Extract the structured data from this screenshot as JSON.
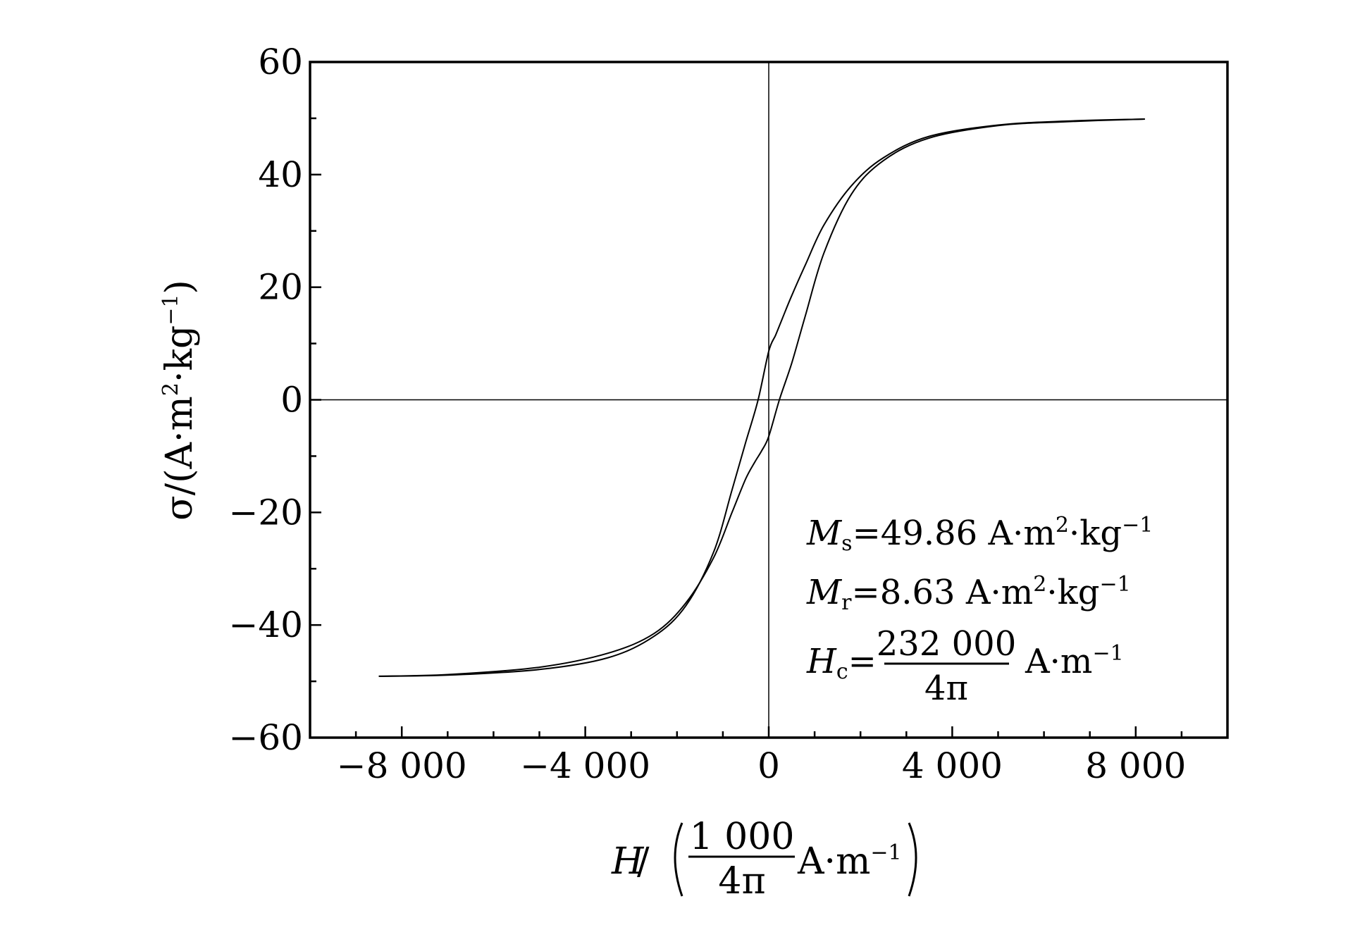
{
  "chart_data": {
    "type": "line",
    "title": "",
    "xlabel": {
      "symbol": "H",
      "slash": "/",
      "numerator": "1 000",
      "denominator": "4π",
      "unit": "A·m",
      "unit_exp": "−1"
    },
    "ylabel": {
      "symbol": "σ",
      "prefix": "/(A·m",
      "exp1": "2",
      "mid": "·kg",
      "exp2": "−1",
      "suffix": ")"
    },
    "xlim": [
      -10000,
      10000
    ],
    "ylim": [
      -60,
      60
    ],
    "x_ticks": [
      {
        "value": -8000,
        "label": "−8 000"
      },
      {
        "value": -4000,
        "label": "−4 000"
      },
      {
        "value": 0,
        "label": "0"
      },
      {
        "value": 4000,
        "label": "4 000"
      },
      {
        "value": 8000,
        "label": "8 000"
      }
    ],
    "y_ticks": [
      {
        "value": 60,
        "label": "60"
      },
      {
        "value": 40,
        "label": "40"
      },
      {
        "value": 20,
        "label": "20"
      },
      {
        "value": 0,
        "label": "0"
      },
      {
        "value": -20,
        "label": "−20"
      },
      {
        "value": -40,
        "label": "−40"
      },
      {
        "value": -60,
        "label": "−60"
      }
    ],
    "x_minor_step": 1000,
    "y_minor_step": 10,
    "zero_lines": true,
    "grid": false,
    "series": [
      {
        "x": [
          -8500,
          -7000,
          -5000,
          -3500,
          -2500,
          -1800,
          -1200,
          -800,
          -500,
          -300,
          -150,
          0,
          232,
          500,
          800,
          1200,
          1800,
          2500,
          3500,
          5000,
          6500,
          8200
        ],
        "y": [
          -49.1,
          -48.8,
          -47.5,
          -45.0,
          -41.5,
          -36.0,
          -28.0,
          -20.0,
          -14.0,
          -11.0,
          -9.0,
          -6.5,
          0,
          6.5,
          15.0,
          26.0,
          36.5,
          42.5,
          46.5,
          48.7,
          49.4,
          49.86
        ]
      },
      {
        "x": [
          8200,
          6500,
          5000,
          3500,
          2500,
          1800,
          1200,
          800,
          500,
          300,
          150,
          0,
          -232,
          -500,
          -800,
          -1200,
          -1800,
          -2500,
          -3500,
          -5000,
          -7000,
          -8500
        ],
        "y": [
          49.86,
          49.5,
          48.8,
          46.8,
          43.0,
          38.0,
          31.0,
          24.0,
          18.5,
          14.5,
          11.5,
          8.63,
          0,
          -7.5,
          -16.0,
          -27.0,
          -36.5,
          -42.0,
          -45.8,
          -47.9,
          -48.9,
          -49.1
        ]
      }
    ],
    "annotations": [
      {
        "symbol": "M",
        "sub": "s",
        "eq": "=",
        "value": "49.86 A·m",
        "exp1": "2",
        "mid": "·kg",
        "exp2": "−1"
      },
      {
        "symbol": "M",
        "sub": "r",
        "eq": "=",
        "value": "8.63 A·m",
        "exp1": "2",
        "mid": "·kg",
        "exp2": "−1"
      },
      {
        "symbol": "H",
        "sub": "c",
        "eq": "=",
        "numerator": "232 000",
        "denominator": "4π",
        "unit": "A·m",
        "unit_exp": "−1"
      }
    ]
  },
  "colors": {
    "line": "#000000",
    "frame": "#000000",
    "background": "#ffffff"
  }
}
